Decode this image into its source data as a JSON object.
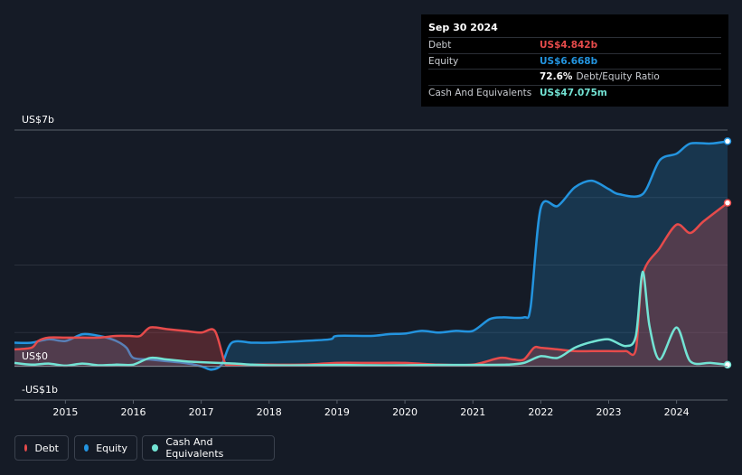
{
  "tooltip": {
    "date": "Sep 30 2024",
    "rows": [
      {
        "label": "Debt",
        "value": "US$4.842b",
        "color": "#e64b4b"
      },
      {
        "label": "Equity",
        "value": "US$6.668b",
        "color": "#2394df"
      },
      {
        "label": "",
        "value": "72.6%",
        "sub": "Debt/Equity Ratio",
        "color": "#ffffff"
      },
      {
        "label": "Cash And Equivalents",
        "value": "US$47.075m",
        "color": "#73e3d4"
      }
    ]
  },
  "legend": [
    {
      "label": "Debt",
      "color": "#e64b4b"
    },
    {
      "label": "Equity",
      "color": "#2394df"
    },
    {
      "label": "Cash And Equivalents",
      "color": "#73e3d4"
    }
  ],
  "chart_data": {
    "type": "area",
    "y_tick_labels": [
      "US$7b",
      "US$0",
      "-US$1b"
    ],
    "x_tick_labels": [
      "2015",
      "2016",
      "2017",
      "2018",
      "2019",
      "2020",
      "2021",
      "2022",
      "2023",
      "2024"
    ],
    "ylim": [
      -1,
      7
    ],
    "xlim": [
      2014.25,
      2024.75
    ],
    "series": [
      {
        "name": "Debt",
        "color": "#e64b4b",
        "x": [
          2014.25,
          2014.5,
          2014.6,
          2014.75,
          2015.0,
          2015.25,
          2015.5,
          2015.75,
          2015.95,
          2016.1,
          2016.25,
          2016.5,
          2016.75,
          2017.0,
          2017.2,
          2017.35,
          2017.45,
          2017.75,
          2018.0,
          2018.5,
          2019.0,
          2019.5,
          2020.0,
          2020.5,
          2021.0,
          2021.4,
          2021.6,
          2021.75,
          2021.9,
          2022.0,
          2022.25,
          2022.5,
          2022.75,
          2023.0,
          2023.25,
          2023.4,
          2023.5,
          2023.75,
          2024.0,
          2024.2,
          2024.4,
          2024.75
        ],
        "values": [
          0.5,
          0.55,
          0.75,
          0.85,
          0.85,
          0.85,
          0.85,
          0.9,
          0.9,
          0.9,
          1.15,
          1.1,
          1.05,
          1.0,
          1.05,
          0.1,
          0.05,
          0.05,
          0.05,
          0.05,
          0.1,
          0.1,
          0.1,
          0.05,
          0.05,
          0.25,
          0.2,
          0.2,
          0.55,
          0.55,
          0.5,
          0.45,
          0.45,
          0.45,
          0.45,
          0.5,
          2.7,
          3.5,
          4.2,
          3.95,
          4.3,
          4.842
        ]
      },
      {
        "name": "Equity",
        "color": "#2394df",
        "x": [
          2014.25,
          2014.5,
          2014.75,
          2015.0,
          2015.25,
          2015.5,
          2015.75,
          2015.9,
          2016.0,
          2016.25,
          2016.5,
          2016.75,
          2017.0,
          2017.15,
          2017.3,
          2017.45,
          2017.75,
          2018.0,
          2018.5,
          2018.9,
          2019.0,
          2019.5,
          2019.75,
          2020.0,
          2020.25,
          2020.5,
          2020.75,
          2021.0,
          2021.25,
          2021.45,
          2021.75,
          2021.85,
          2022.0,
          2022.25,
          2022.5,
          2022.75,
          2023.0,
          2023.15,
          2023.5,
          2023.75,
          2024.0,
          2024.2,
          2024.5,
          2024.75
        ],
        "values": [
          0.7,
          0.7,
          0.8,
          0.75,
          0.95,
          0.9,
          0.75,
          0.55,
          0.25,
          0.2,
          0.15,
          0.1,
          0.0,
          -0.1,
          0.05,
          0.7,
          0.7,
          0.7,
          0.75,
          0.8,
          0.9,
          0.9,
          0.95,
          0.97,
          1.05,
          1.0,
          1.05,
          1.05,
          1.4,
          1.45,
          1.45,
          1.75,
          4.7,
          4.75,
          5.3,
          5.5,
          5.25,
          5.1,
          5.1,
          6.1,
          6.3,
          6.6,
          6.6,
          6.668
        ]
      },
      {
        "name": "Cash And Equivalents",
        "color": "#73e3d4",
        "x": [
          2014.25,
          2014.5,
          2014.75,
          2015.0,
          2015.25,
          2015.5,
          2015.75,
          2016.0,
          2016.25,
          2016.5,
          2016.75,
          2017.0,
          2017.25,
          2017.5,
          2017.75,
          2018.0,
          2018.5,
          2019.0,
          2019.5,
          2020.0,
          2020.5,
          2021.0,
          2021.5,
          2021.75,
          2022.0,
          2022.25,
          2022.5,
          2022.75,
          2023.0,
          2023.25,
          2023.4,
          2023.5,
          2023.6,
          2023.75,
          2024.0,
          2024.2,
          2024.5,
          2024.75
        ],
        "values": [
          0.1,
          0.05,
          0.08,
          0.02,
          0.08,
          0.03,
          0.05,
          0.05,
          0.25,
          0.2,
          0.15,
          0.12,
          0.1,
          0.08,
          0.05,
          0.03,
          0.03,
          0.04,
          0.03,
          0.03,
          0.04,
          0.04,
          0.05,
          0.1,
          0.3,
          0.25,
          0.55,
          0.72,
          0.8,
          0.6,
          0.9,
          2.8,
          1.2,
          0.2,
          1.15,
          0.15,
          0.1,
          0.047
        ]
      }
    ]
  }
}
